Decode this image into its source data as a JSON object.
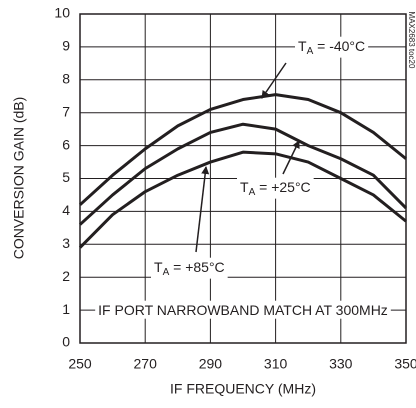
{
  "chart_data": {
    "type": "line",
    "x_label": "IF FREQUENCY (MHz)",
    "y_label": "CONVERSION GAIN (dB)",
    "side_note": "MAX2683 toc20",
    "x": [
      250,
      260,
      270,
      280,
      290,
      300,
      310,
      320,
      330,
      340,
      350
    ],
    "series": [
      {
        "color": "#231f20",
        "values": [
          4.2,
          5.1,
          5.9,
          6.6,
          7.1,
          7.4,
          7.55,
          7.4,
          7.0,
          6.4,
          5.6
        ]
      },
      {
        "color": "#231f20",
        "values": [
          3.6,
          4.5,
          5.3,
          5.9,
          6.4,
          6.65,
          6.5,
          6.0,
          5.6,
          5.1,
          4.1
        ]
      },
      {
        "color": "#231f20",
        "values": [
          2.9,
          3.9,
          4.6,
          5.1,
          5.5,
          5.8,
          5.75,
          5.5,
          5.0,
          4.5,
          3.7
        ]
      }
    ],
    "annotations": [
      {
        "parts": [
          "T",
          "A",
          " = -40°C"
        ]
      },
      {
        "parts": [
          "T",
          "A",
          " = +25°C"
        ]
      },
      {
        "parts": [
          "T",
          "A",
          " = +85°C"
        ]
      },
      {
        "parts": [
          "IF PORT NARROWBAND MATCH AT 300MHz"
        ]
      }
    ],
    "xlim": [
      250,
      350
    ],
    "ylim": [
      0,
      10
    ],
    "xticks": [
      250,
      270,
      290,
      310,
      330,
      350
    ],
    "yticks": [
      0,
      1,
      2,
      3,
      4,
      5,
      6,
      7,
      8,
      9,
      10
    ],
    "grid": true
  }
}
